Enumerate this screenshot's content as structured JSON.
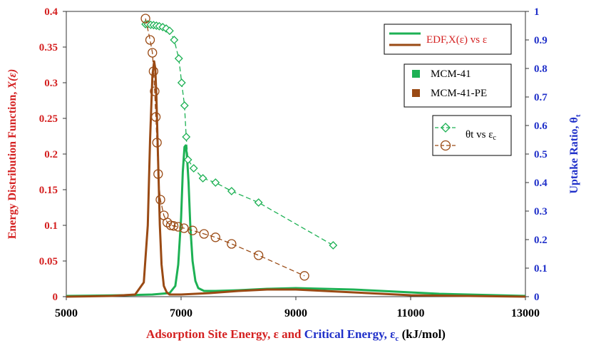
{
  "chart_data": {
    "type": "line",
    "x_range": [
      5000,
      13000
    ],
    "x_ticks": [
      5000,
      7000,
      9000,
      11000,
      13000
    ],
    "y_left_range": [
      0,
      0.4
    ],
    "y_left_ticks": [
      "0",
      "0.05",
      "0.1",
      "0.15",
      "0.2",
      "0.25",
      "0.3",
      "0.35",
      "0.4"
    ],
    "y_right_range": [
      0,
      1
    ],
    "y_right_ticks": [
      "0",
      "0.1",
      "0.2",
      "0.3",
      "0.4",
      "0.5",
      "0.6",
      "0.7",
      "0.8",
      "0.9",
      "1"
    ],
    "xlabel": {
      "part1": "Adsorption Site Energy, ε and ",
      "part2": "Critical Energy, ε",
      "sub": "c",
      "part3": " (kJ/mol)"
    },
    "ylabel_left": {
      "text": "Energy Distribution Function, ",
      "italic": "X(ε)"
    },
    "ylabel_right": {
      "text": "Uptake Ratio, θ",
      "sub": "t"
    },
    "legend": {
      "edf_label": "EDF,X(ε) vs ε",
      "series_1": "MCM-41",
      "series_2": "MCM-41-PE",
      "theta_label_part1": "θt vs ε",
      "theta_label_sub": "c"
    },
    "colors": {
      "green": "#1db154",
      "brown": "#9a4a14",
      "red_axis": "#d42020",
      "blue_axis": "#1f2fc9"
    },
    "edf_series": [
      {
        "name": "MCM-41",
        "color": "#1db154",
        "x": [
          5000,
          6000,
          6500,
          6800,
          6900,
          6950,
          7000,
          7030,
          7060,
          7080,
          7100,
          7130,
          7160,
          7200,
          7250,
          7300,
          7400,
          7600,
          8000,
          8500,
          9000,
          9500,
          10000,
          10500,
          11000,
          11500,
          12000,
          12500,
          13000
        ],
        "y": [
          0.001,
          0.002,
          0.003,
          0.005,
          0.015,
          0.045,
          0.11,
          0.175,
          0.21,
          0.212,
          0.2,
          0.16,
          0.1,
          0.05,
          0.022,
          0.012,
          0.008,
          0.008,
          0.009,
          0.011,
          0.012,
          0.011,
          0.01,
          0.008,
          0.006,
          0.004,
          0.003,
          0.002,
          0.001
        ]
      },
      {
        "name": "MCM-41-PE",
        "color": "#9a4a14",
        "x": [
          5000,
          5800,
          6200,
          6350,
          6420,
          6460,
          6500,
          6530,
          6550,
          6570,
          6600,
          6630,
          6660,
          6700,
          6750,
          6800,
          7000,
          7500,
          8000,
          8500,
          9000,
          9500,
          10000,
          10500,
          11000,
          12000,
          13000
        ],
        "y": [
          0.0,
          0.001,
          0.003,
          0.02,
          0.1,
          0.22,
          0.31,
          0.33,
          0.32,
          0.28,
          0.19,
          0.1,
          0.045,
          0.015,
          0.006,
          0.003,
          0.003,
          0.005,
          0.008,
          0.01,
          0.01,
          0.008,
          0.006,
          0.004,
          0.002,
          0.001,
          0.0
        ]
      }
    ],
    "theta_series": [
      {
        "name": "MCM-41",
        "color": "#1db154",
        "x": [
          6380,
          6420,
          6470,
          6520,
          6570,
          6620,
          6680,
          6740,
          6800,
          6880,
          6960,
          7010,
          7060,
          7090,
          7120,
          7220,
          7380,
          7600,
          7880,
          8350,
          9650
        ],
        "y": [
          0.955,
          0.955,
          0.953,
          0.952,
          0.95,
          0.948,
          0.945,
          0.94,
          0.932,
          0.9,
          0.835,
          0.75,
          0.67,
          0.56,
          0.48,
          0.45,
          0.415,
          0.4,
          0.37,
          0.33,
          0.18
        ]
      },
      {
        "name": "MCM-41-PE",
        "color": "#9a4a14",
        "x": [
          6380,
          6460,
          6500,
          6520,
          6540,
          6560,
          6580,
          6600,
          6640,
          6700,
          6760,
          6820,
          6870,
          6950,
          7050,
          7200,
          7400,
          7600,
          7880,
          8350,
          9150
        ],
        "y": [
          0.975,
          0.9,
          0.855,
          0.79,
          0.72,
          0.63,
          0.54,
          0.43,
          0.34,
          0.285,
          0.26,
          0.25,
          0.248,
          0.245,
          0.24,
          0.232,
          0.22,
          0.208,
          0.185,
          0.145,
          0.073
        ]
      }
    ]
  }
}
